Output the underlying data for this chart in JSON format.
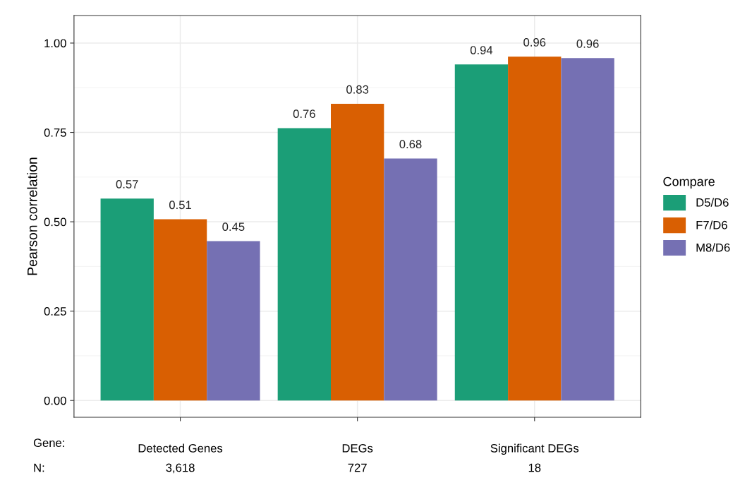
{
  "chart_data": {
    "type": "bar",
    "ylabel": "Pearson correlation",
    "legend_title": "Compare",
    "categories": [
      "Detected Genes",
      "DEGs",
      "Significant DEGs"
    ],
    "series": [
      {
        "name": "D5/D6",
        "color": "#1b9e77",
        "values": [
          0.565,
          0.762,
          0.94
        ],
        "value_labels": [
          "0.57",
          "0.76",
          "0.94"
        ]
      },
      {
        "name": "F7/D6",
        "color": "#d95f02",
        "values": [
          0.507,
          0.83,
          0.962
        ],
        "value_labels": [
          "0.51",
          "0.83",
          "0.96"
        ]
      },
      {
        "name": "M8/D6",
        "color": "#7570b3",
        "values": [
          0.446,
          0.677,
          0.958
        ],
        "value_labels": [
          "0.45",
          "0.68",
          "0.96"
        ]
      }
    ],
    "ylim": [
      -0.047,
      1.077
    ],
    "yticks": [
      {
        "value": 0,
        "label": "0.00"
      },
      {
        "value": 0.25,
        "label": "0.25"
      },
      {
        "value": 0.5,
        "label": "0.50"
      },
      {
        "value": 0.75,
        "label": "0.75"
      },
      {
        "value": 1,
        "label": "1.00"
      }
    ],
    "grid": true,
    "legend": "right",
    "annotations": [
      "Gene:",
      "N:",
      "3,618",
      "727",
      "18"
    ]
  }
}
